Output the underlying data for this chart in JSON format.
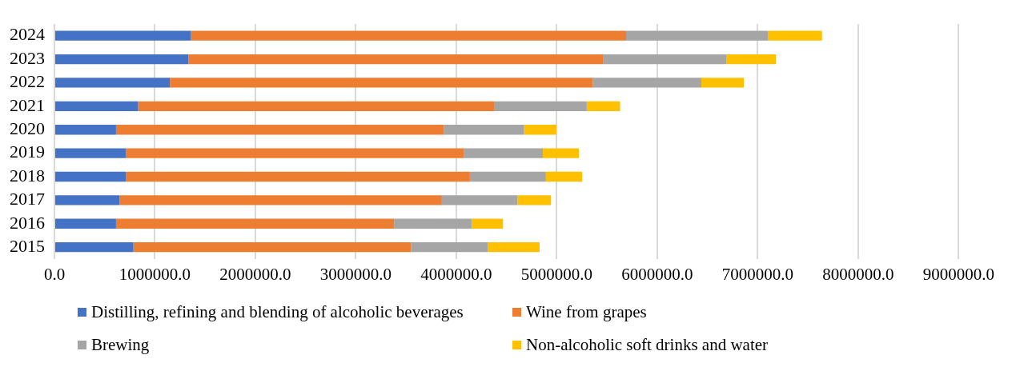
{
  "chart_data": {
    "type": "bar",
    "orientation": "horizontal",
    "stacked": true,
    "categories": [
      "2024",
      "2023",
      "2022",
      "2021",
      "2020",
      "2019",
      "2018",
      "2017",
      "2016",
      "2015"
    ],
    "series": [
      {
        "name": "Distilling, refining and blending of alcoholic beverages",
        "color": "#4472c4",
        "values": [
          1359000,
          1333000,
          1149000,
          833000,
          613000,
          710000,
          710000,
          647000,
          613000,
          786000
        ]
      },
      {
        "name": "Wine from grapes",
        "color": "#ed7d31",
        "values": [
          4331000,
          4132000,
          4210000,
          3542000,
          3263000,
          3363000,
          3425000,
          3209000,
          2767000,
          2764000
        ]
      },
      {
        "name": "Brewing",
        "color": "#a5a5a5",
        "values": [
          1410000,
          1221000,
          1080000,
          923000,
          798000,
          788000,
          757000,
          753000,
          771000,
          763000
        ]
      },
      {
        "name": "Non-alcoholic soft drinks and water",
        "color": "#ffc000",
        "values": [
          540000,
          494000,
          423000,
          332000,
          321000,
          359000,
          361000,
          334000,
          314000,
          516000
        ]
      }
    ],
    "xlim": [
      0,
      9000000
    ],
    "xticks": [
      {
        "value": 0,
        "label": "0.0"
      },
      {
        "value": 1000000,
        "label": "1000000.0"
      },
      {
        "value": 2000000,
        "label": "2000000.0"
      },
      {
        "value": 3000000,
        "label": "3000000.0"
      },
      {
        "value": 4000000,
        "label": "4000000.0"
      },
      {
        "value": 5000000,
        "label": "5000000.0"
      },
      {
        "value": 6000000,
        "label": "6000000.0"
      },
      {
        "value": 7000000,
        "label": "7000000.0"
      },
      {
        "value": 8000000,
        "label": "8000000.0"
      },
      {
        "value": 9000000,
        "label": "9000000.0"
      }
    ],
    "grid": "x",
    "legend": "bottom"
  }
}
